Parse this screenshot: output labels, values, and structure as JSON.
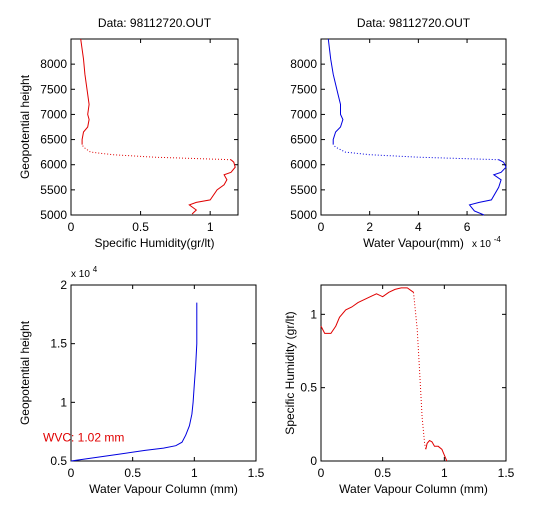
{
  "colors": {
    "series_red": "#e00000",
    "series_blue": "#0000e0",
    "annotation": "#e00000"
  },
  "chart_data": [
    {
      "type": "line",
      "title": "Data: 98112720.OUT",
      "xlabel": "Specific Humidity(gr/lt)",
      "ylabel": "Geopotential height",
      "xlim": [
        0,
        1.2
      ],
      "ylim": [
        5000,
        8500
      ],
      "xticks": [
        0,
        0.5,
        1
      ],
      "xtick_labels": [
        "0",
        "0.5",
        "1"
      ],
      "yticks": [
        5000,
        5500,
        6000,
        6500,
        7000,
        7500,
        8000
      ],
      "ytick_labels": [
        "5000",
        "5500",
        "6000",
        "6500",
        "7000",
        "7500",
        "8000"
      ],
      "axis_multiplier": "",
      "grid": false,
      "series": [
        {
          "color": "#e00000",
          "style": "solid",
          "x": [
            0.87,
            0.9,
            0.85,
            0.9,
            1.0,
            1.05,
            1.1,
            1.12,
            1.1,
            1.15,
            1.18,
            1.17,
            1.15
          ],
          "y": [
            5020,
            5100,
            5200,
            5250,
            5300,
            5500,
            5600,
            5700,
            5800,
            5850,
            5950,
            6050,
            6100
          ]
        },
        {
          "color": "#e00000",
          "style": "dotted",
          "x": [
            1.15,
            0.6,
            0.3,
            0.14,
            0.09,
            0.08
          ],
          "y": [
            6100,
            6150,
            6200,
            6250,
            6350,
            6400
          ]
        },
        {
          "color": "#e00000",
          "style": "solid",
          "x": [
            0.08,
            0.08,
            0.09,
            0.12,
            0.13,
            0.12,
            0.13,
            0.12,
            0.11,
            0.1,
            0.09,
            0.08,
            0.07
          ],
          "y": [
            6400,
            6500,
            6650,
            6750,
            6900,
            7000,
            7200,
            7400,
            7600,
            7800,
            8100,
            8300,
            8500
          ]
        }
      ]
    },
    {
      "type": "line",
      "title": "Data: 98112720.OUT",
      "xlabel": "Water Vapour(mm)",
      "ylabel": "",
      "xlim": [
        0,
        7.6
      ],
      "ylim": [
        5000,
        8500
      ],
      "xticks": [
        0,
        2,
        4,
        6
      ],
      "xtick_labels": [
        "0",
        "2",
        "4",
        "6"
      ],
      "yticks": [
        5000,
        5500,
        6000,
        6500,
        7000,
        7500,
        8000
      ],
      "ytick_labels": [
        "5000",
        "5500",
        "6000",
        "6500",
        "7000",
        "7500",
        "8000"
      ],
      "axis_multiplier": "x 10",
      "axis_multiplier_exp": "-4",
      "grid": false,
      "series": [
        {
          "color": "#0000e0",
          "style": "solid",
          "x": [
            6.7,
            6.3,
            6.1,
            6.5,
            7.0,
            7.3,
            7.4,
            7.1,
            7.4,
            7.6,
            7.5,
            7.3
          ],
          "y": [
            5000,
            5080,
            5200,
            5250,
            5300,
            5550,
            5700,
            5800,
            5850,
            5950,
            6050,
            6100
          ]
        },
        {
          "color": "#0000e0",
          "style": "dotted",
          "x": [
            7.3,
            4.0,
            2.0,
            1.0,
            0.6,
            0.5
          ],
          "y": [
            6100,
            6150,
            6200,
            6250,
            6350,
            6400
          ]
        },
        {
          "color": "#0000e0",
          "style": "solid",
          "x": [
            0.5,
            0.5,
            0.6,
            0.8,
            0.9,
            0.8,
            0.8,
            0.7,
            0.6,
            0.5,
            0.4,
            0.35,
            0.3
          ],
          "y": [
            6400,
            6500,
            6650,
            6750,
            6900,
            7000,
            7200,
            7400,
            7600,
            7800,
            8100,
            8300,
            8500
          ]
        }
      ]
    },
    {
      "type": "line",
      "title": "",
      "xlabel": "Water Vapour Column (mm)",
      "ylabel": "Geopotential height",
      "xlim": [
        0,
        1.5
      ],
      "ylim": [
        0.5,
        2
      ],
      "xticks": [
        0,
        0.5,
        1,
        1.5
      ],
      "xtick_labels": [
        "0",
        "0.5",
        "1",
        "1.5"
      ],
      "yticks": [
        0.5,
        1,
        1.5,
        2
      ],
      "ytick_labels": [
        "0.5",
        "1",
        "1.5",
        "2"
      ],
      "axis_multiplier": "x 10",
      "axis_multiplier_exp": "4",
      "grid": false,
      "annotation": "WVC: 1.02 mm",
      "series": [
        {
          "color": "#0000e0",
          "style": "solid",
          "x": [
            0,
            0.2,
            0.4,
            0.6,
            0.75,
            0.85,
            0.9,
            0.93,
            0.96,
            0.98,
            0.99,
            1.0,
            1.01,
            1.02,
            1.02,
            1.02
          ],
          "y": [
            0.5,
            0.53,
            0.56,
            0.59,
            0.61,
            0.63,
            0.66,
            0.72,
            0.8,
            0.9,
            1.0,
            1.15,
            1.3,
            1.5,
            1.7,
            1.85
          ]
        }
      ]
    },
    {
      "type": "line",
      "title": "",
      "xlabel": "Water Vapour Column (mm)",
      "ylabel": "Specific Humidity (gr/lt)",
      "xlim": [
        0,
        1.5
      ],
      "ylim": [
        0,
        1.2
      ],
      "xticks": [
        0,
        0.5,
        1,
        1.5
      ],
      "xtick_labels": [
        "0",
        "0.5",
        "1",
        "1.5"
      ],
      "yticks": [
        0,
        0.5,
        1
      ],
      "ytick_labels": [
        "0",
        "0.5",
        "1"
      ],
      "axis_multiplier": "",
      "grid": false,
      "series": [
        {
          "color": "#e00000",
          "style": "solid",
          "x": [
            0,
            0.03,
            0.08,
            0.12,
            0.15,
            0.2,
            0.25,
            0.3,
            0.4,
            0.45,
            0.5,
            0.55,
            0.6,
            0.65,
            0.7,
            0.75
          ],
          "y": [
            0.92,
            0.87,
            0.87,
            0.92,
            0.98,
            1.03,
            1.05,
            1.08,
            1.12,
            1.14,
            1.12,
            1.15,
            1.17,
            1.18,
            1.18,
            1.15
          ]
        },
        {
          "color": "#e00000",
          "style": "dotted",
          "x": [
            0.75,
            0.78,
            0.8,
            0.82,
            0.84,
            0.85
          ],
          "y": [
            1.15,
            0.9,
            0.6,
            0.3,
            0.12,
            0.08
          ]
        },
        {
          "color": "#e00000",
          "style": "solid",
          "x": [
            0.85,
            0.86,
            0.88,
            0.9,
            0.92,
            0.95,
            0.98,
            1.0,
            1.02
          ],
          "y": [
            0.08,
            0.12,
            0.14,
            0.13,
            0.1,
            0.1,
            0.08,
            0.04,
            0.0
          ]
        }
      ]
    }
  ]
}
